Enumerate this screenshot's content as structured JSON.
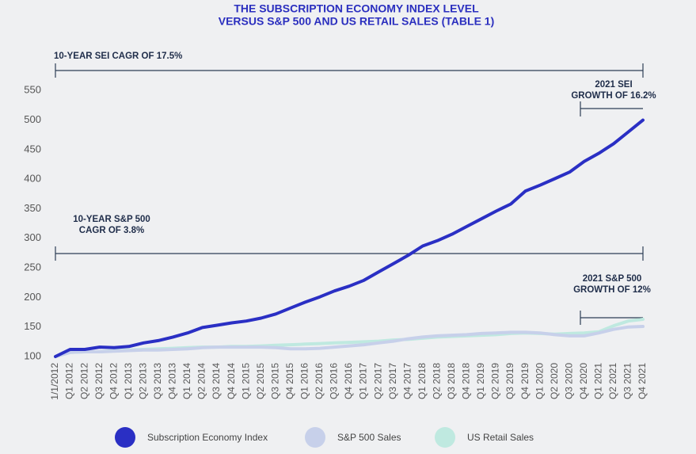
{
  "chart_data": {
    "type": "line",
    "title": [
      "THE SUBSCRIPTION ECONOMY INDEX LEVEL",
      "VERSUS S&P 500 AND US RETAIL SALES (TABLE 1)"
    ],
    "categories": [
      "1/1/2012",
      "Q1 2012",
      "Q2 2012",
      "Q3 2012",
      "Q4 2012",
      "Q1 2013",
      "Q2 2013",
      "Q3 2013",
      "Q4 2013",
      "Q1 2014",
      "Q2 2014",
      "Q3 2014",
      "Q4 2014",
      "Q1 2015",
      "Q2 2015",
      "Q3 2015",
      "Q4 2015",
      "Q1 2016",
      "Q2 2016",
      "Q3 2016",
      "Q4 2016",
      "Q1 2017",
      "Q2 2017",
      "Q3 2017",
      "Q4 2017",
      "Q1 2018",
      "Q2 2018",
      "Q3 2018",
      "Q4 2018",
      "Q1 2019",
      "Q2 2019",
      "Q3 2019",
      "Q4 2019",
      "Q1 2020",
      "Q2 2020",
      "Q3 2020",
      "Q4 2020",
      "Q1 2021",
      "Q2 2021",
      "Q3 2021",
      "Q4 2021"
    ],
    "series": [
      {
        "name": "Subscription Economy Index",
        "color": "#2a2fc4",
        "values": [
          100,
          112,
          112,
          116,
          115,
          117,
          123,
          127,
          133,
          140,
          149,
          153,
          157,
          160,
          165,
          172,
          182,
          192,
          201,
          211,
          219,
          229,
          243,
          257,
          271,
          287,
          296,
          307,
          320,
          333,
          346,
          358,
          380,
          390,
          401,
          412,
          430,
          444,
          460,
          480,
          500
        ]
      },
      {
        "name": "S&P 500 Sales",
        "color": "#c7d0ea",
        "values": [
          100,
          107,
          108,
          108,
          109,
          110,
          111,
          111,
          112,
          113,
          115,
          116,
          116,
          116,
          116,
          115,
          113,
          113,
          114,
          116,
          118,
          120,
          123,
          126,
          130,
          133,
          135,
          136,
          137,
          139,
          140,
          141,
          141,
          140,
          137,
          135,
          135,
          140,
          146,
          150,
          151
        ]
      },
      {
        "name": "US Retail Sales",
        "color": "#bfe9e0",
        "values": [
          100,
          107,
          108,
          108,
          110,
          111,
          112,
          113,
          114,
          115,
          116,
          116,
          117,
          117,
          118,
          119,
          120,
          121,
          122,
          123,
          124,
          125,
          126,
          128,
          129,
          131,
          133,
          134,
          135,
          136,
          137,
          139,
          140,
          139,
          138,
          139,
          140,
          142,
          152,
          160,
          163
        ]
      }
    ],
    "ylim": [
      100,
      600
    ],
    "yticks": [
      100,
      150,
      200,
      250,
      300,
      350,
      400,
      450,
      500,
      550
    ],
    "annotations": [
      {
        "text": [
          "10-YEAR SEI CAGR OF 17.5%"
        ]
      },
      {
        "text": [
          "2021 SEI",
          "GROWTH OF 16.2%"
        ]
      },
      {
        "text": [
          "10-YEAR S&P 500",
          "CAGR OF 3.8%"
        ]
      },
      {
        "text": [
          "2021 S&P 500",
          "GROWTH OF 12%"
        ]
      }
    ]
  }
}
